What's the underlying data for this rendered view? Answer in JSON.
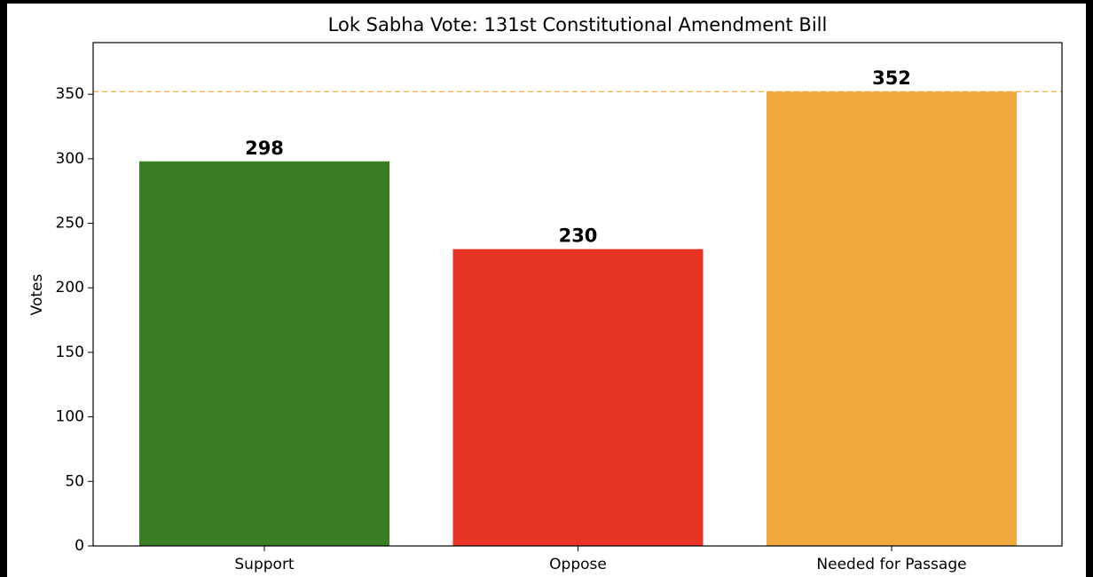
{
  "chart_data": {
    "type": "bar",
    "title": "Lok Sabha Vote: 131st Constitutional Amendment Bill",
    "y_label": "Votes",
    "categories": [
      "Support",
      "Oppose",
      "Needed for Passage"
    ],
    "values": [
      298,
      230,
      352
    ],
    "colors": [
      "#3a7d22",
      "#e83424",
      "#f0a93c"
    ],
    "threshold": 352,
    "threshold_color": "#f0a93c",
    "ylim": [
      0,
      390
    ],
    "yticks": [
      0,
      50,
      100,
      150,
      200,
      250,
      300,
      350
    ],
    "grid": false
  }
}
